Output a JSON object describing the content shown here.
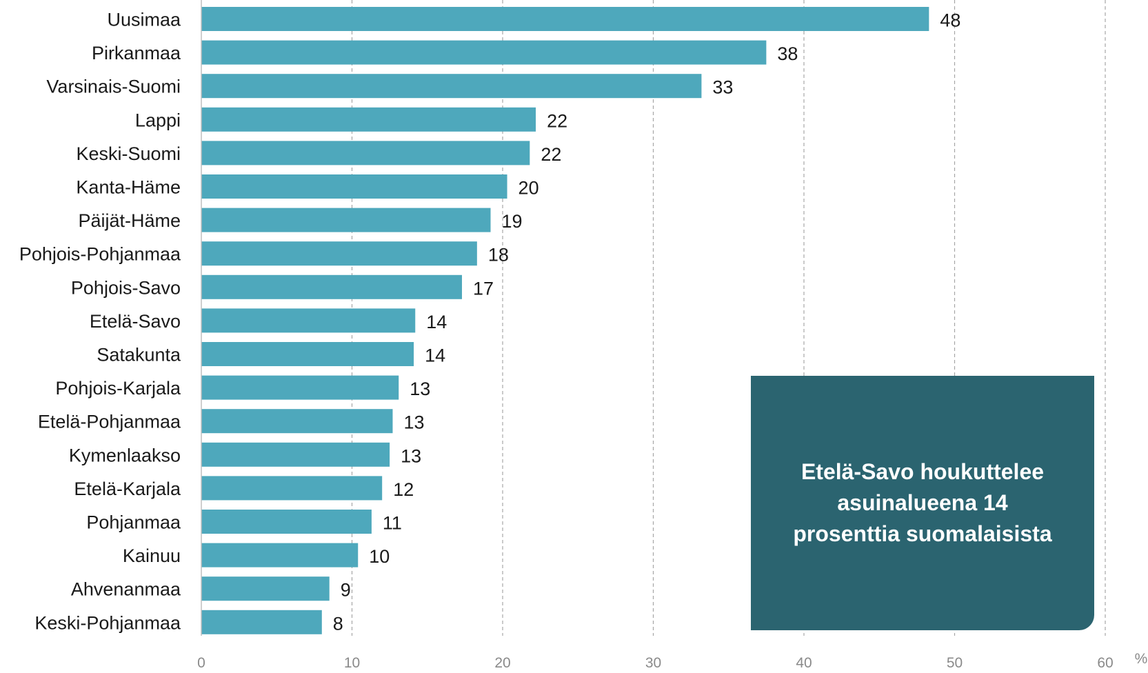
{
  "chart_data": {
    "type": "bar",
    "orientation": "horizontal",
    "categories": [
      "Uusimaa",
      "Pirkanmaa",
      "Varsinais-Suomi",
      "Lappi",
      "Keski-Suomi",
      "Kanta-Häme",
      "Päijät-Häme",
      "Pohjois-Pohjanmaa",
      "Pohjois-Savo",
      "Etelä-Savo",
      "Satakunta",
      "Pohjois-Karjala",
      "Etelä-Pohjanmaa",
      "Kymenlaakso",
      "Etelä-Karjala",
      "Pohjanmaa",
      "Kainuu",
      "Ahvenanmaa",
      "Keski-Pohjanmaa"
    ],
    "values": [
      48.3,
      37.5,
      33.2,
      22.2,
      21.8,
      20.3,
      19.2,
      18.3,
      17.3,
      14.2,
      14.1,
      13.1,
      12.7,
      12.5,
      12.0,
      11.3,
      10.4,
      8.5,
      8.0
    ],
    "value_labels": [
      "48",
      "38",
      "33",
      "22",
      "22",
      "20",
      "19",
      "18",
      "17",
      "14",
      "14",
      "13",
      "13",
      "13",
      "12",
      "11",
      "10",
      "9",
      "8"
    ],
    "xlim": [
      0,
      60
    ],
    "xticks": [
      "0",
      "10",
      "20",
      "30",
      "40",
      "50",
      "60"
    ],
    "unit_label": "%",
    "grid": "vertical dashed",
    "bar_color": "#4ea8bc",
    "title": "",
    "xlabel": "",
    "ylabel": ""
  },
  "callout": {
    "lines": [
      "Etelä-Savo houkuttelee",
      "asuinalueena 14",
      "prosenttia suomalaisista"
    ],
    "bg_color": "#2b6470",
    "text_color": "#ffffff"
  }
}
